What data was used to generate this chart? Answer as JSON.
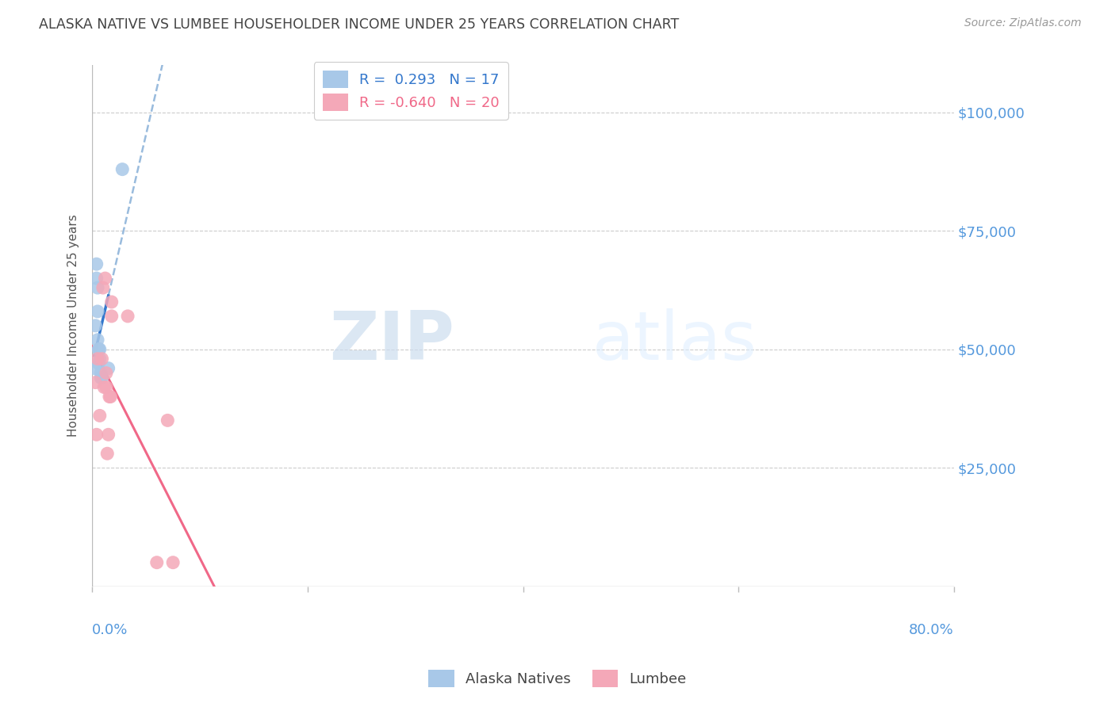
{
  "title": "ALASKA NATIVE VS LUMBEE HOUSEHOLDER INCOME UNDER 25 YEARS CORRELATION CHART",
  "source": "Source: ZipAtlas.com",
  "ylabel": "Householder Income Under 25 years",
  "ytick_labels": [
    "$25,000",
    "$50,000",
    "$75,000",
    "$100,000"
  ],
  "ytick_values": [
    25000,
    50000,
    75000,
    100000
  ],
  "xlim": [
    0.0,
    0.8
  ],
  "ylim": [
    0,
    110000
  ],
  "legend_R_alaska": "R =  0.293",
  "legend_N_alaska": "N = 17",
  "legend_R_lumbee": "R = -0.640",
  "legend_N_lumbee": "N = 20",
  "alaska_color": "#a8c8e8",
  "lumbee_color": "#f4a8b8",
  "alaska_solid_color": "#3377cc",
  "alaska_dash_color": "#99bbdd",
  "lumbee_line_color": "#f06888",
  "alaska_points_x": [
    0.002,
    0.003,
    0.004,
    0.004,
    0.005,
    0.005,
    0.005,
    0.006,
    0.006,
    0.006,
    0.007,
    0.007,
    0.008,
    0.008,
    0.009,
    0.015,
    0.028
  ],
  "alaska_points_y": [
    46000,
    55000,
    68000,
    65000,
    63000,
    58000,
    52000,
    50000,
    50000,
    47000,
    50000,
    48000,
    45000,
    44000,
    44000,
    46000,
    88000
  ],
  "lumbee_points_x": [
    0.003,
    0.004,
    0.005,
    0.007,
    0.009,
    0.01,
    0.011,
    0.012,
    0.013,
    0.013,
    0.014,
    0.015,
    0.016,
    0.017,
    0.018,
    0.018,
    0.033,
    0.06,
    0.07,
    0.075
  ],
  "lumbee_points_y": [
    43000,
    32000,
    48000,
    36000,
    48000,
    63000,
    42000,
    65000,
    42000,
    45000,
    28000,
    32000,
    40000,
    40000,
    60000,
    57000,
    57000,
    5000,
    35000,
    5000
  ],
  "watermark_ZIP": "ZIP",
  "watermark_atlas": "atlas",
  "background_color": "#ffffff",
  "grid_color": "#cccccc",
  "axis_color": "#bbbbbb",
  "title_color": "#444444",
  "ylabel_color": "#555555",
  "right_label_color": "#5599dd",
  "bottom_label_color": "#5599dd"
}
